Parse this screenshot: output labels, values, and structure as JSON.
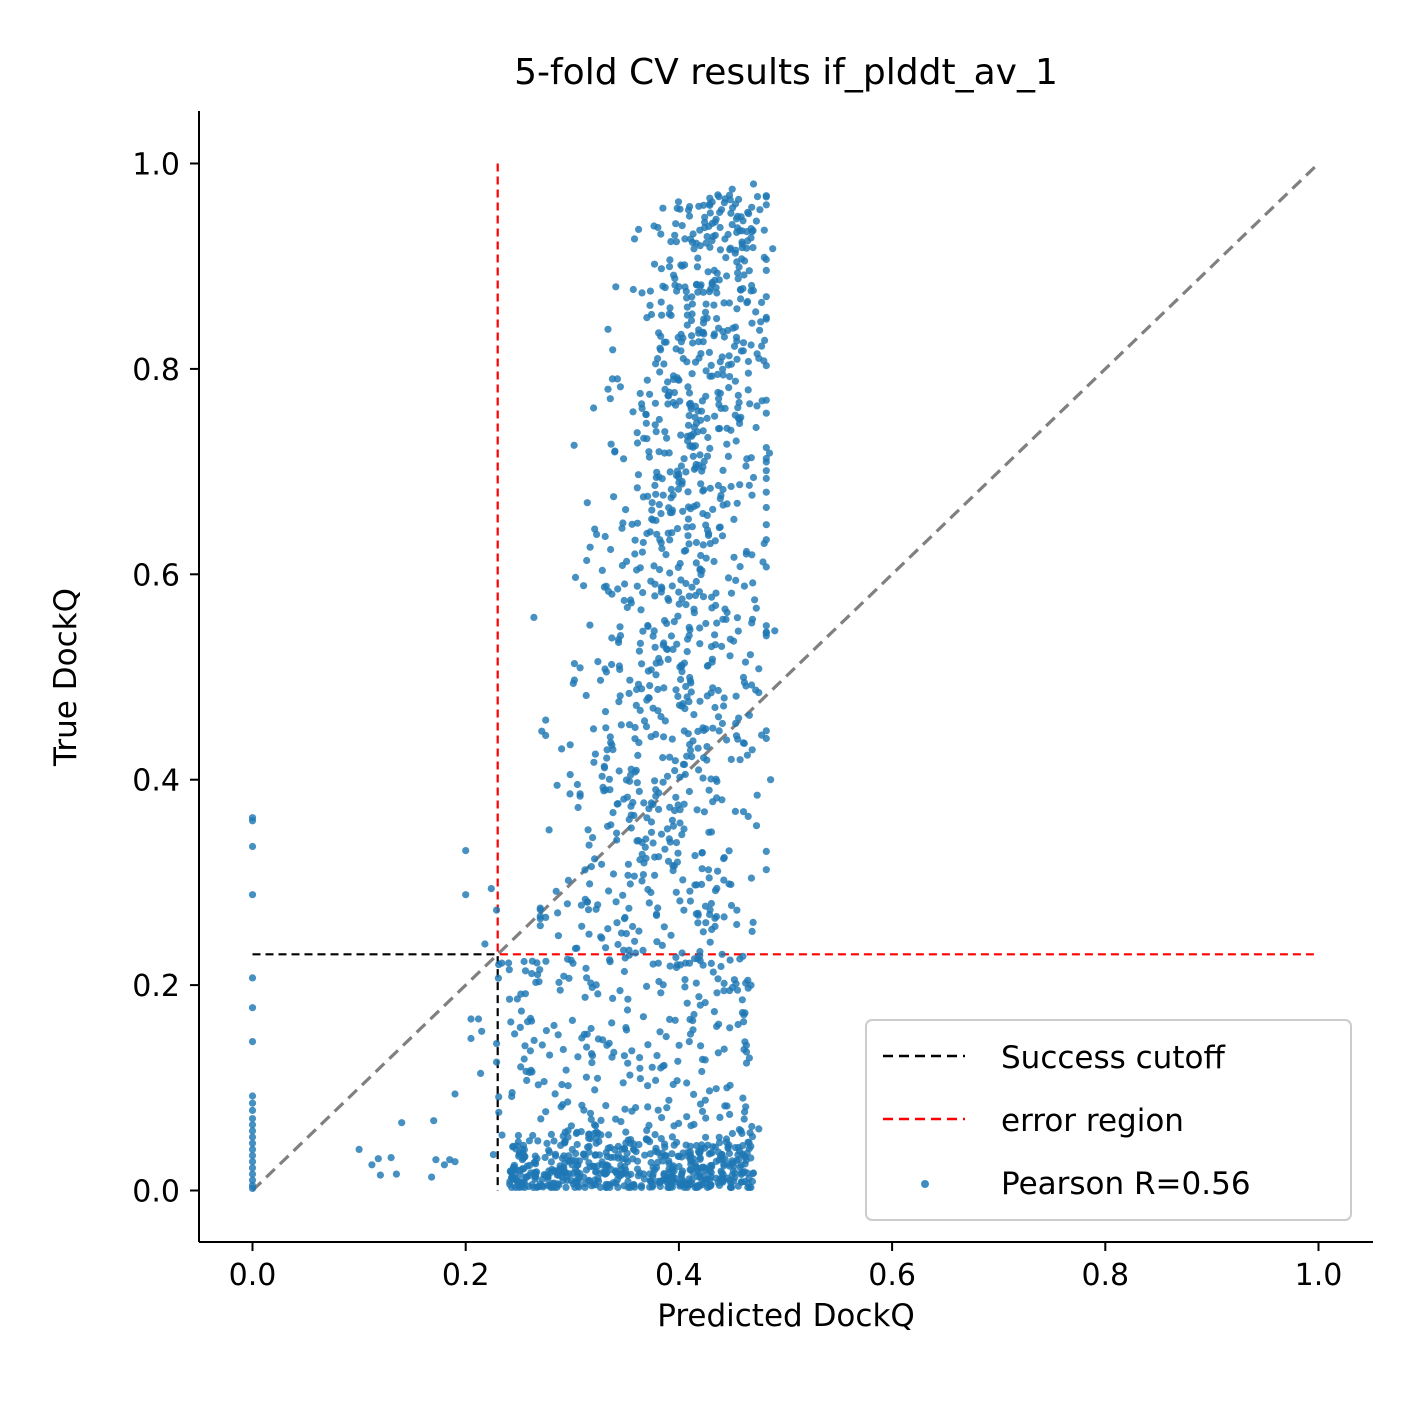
{
  "chart_data": {
    "type": "scatter",
    "title": "5-fold CV results if_plddt_av_1",
    "xlabel": "Predicted DockQ",
    "ylabel": "True DockQ",
    "xlim": [
      -0.05,
      1.05
    ],
    "ylim": [
      -0.05,
      1.05
    ],
    "xticks": [
      0.0,
      0.2,
      0.4,
      0.6,
      0.8,
      1.0
    ],
    "yticks": [
      0.0,
      0.2,
      0.4,
      0.6,
      0.8,
      1.0
    ],
    "xtick_labels": [
      "0.0",
      "0.2",
      "0.4",
      "0.6",
      "0.8",
      "1.0"
    ],
    "ytick_labels": [
      "0.0",
      "0.2",
      "0.4",
      "0.6",
      "0.8",
      "1.0"
    ],
    "grid": false,
    "legend_position": "lower right",
    "lines": [
      {
        "name": "diagonal",
        "x": [
          0.0,
          1.0
        ],
        "y": [
          0.0,
          1.0
        ],
        "color": "#808080",
        "style": "dashed"
      },
      {
        "name": "Success cutoff",
        "x": [
          0.0,
          0.23,
          0.23
        ],
        "y": [
          0.23,
          0.23,
          0.0
        ],
        "color": "#000000",
        "style": "dashed"
      },
      {
        "name": "error region",
        "x": [
          0.23,
          0.23,
          1.0
        ],
        "y": [
          1.0,
          0.23,
          0.23
        ],
        "color": "#ff0000",
        "style": "dashed"
      }
    ],
    "legend": [
      {
        "label": "Success cutoff",
        "kind": "line",
        "color": "#000000"
      },
      {
        "label": "error region",
        "kind": "line",
        "color": "#ff0000"
      },
      {
        "label": "Pearson R=0.56",
        "kind": "point",
        "color": "#1f77b4"
      }
    ],
    "series": [
      {
        "name": "Pearson R=0.56",
        "color": "#1f77b4",
        "points": [
          [
            0.0,
            0.363
          ],
          [
            0.0,
            0.36
          ],
          [
            0.0,
            0.335
          ],
          [
            0.0,
            0.288
          ],
          [
            0.0,
            0.207
          ],
          [
            0.0,
            0.178
          ],
          [
            0.0,
            0.145
          ],
          [
            0.0,
            0.092
          ],
          [
            0.0,
            0.085
          ],
          [
            0.0,
            0.078
          ],
          [
            0.0,
            0.07
          ],
          [
            0.0,
            0.064
          ],
          [
            0.0,
            0.058
          ],
          [
            0.0,
            0.052
          ],
          [
            0.0,
            0.046
          ],
          [
            0.0,
            0.04
          ],
          [
            0.0,
            0.034
          ],
          [
            0.0,
            0.028
          ],
          [
            0.0,
            0.022
          ],
          [
            0.0,
            0.016
          ],
          [
            0.0,
            0.01
          ],
          [
            0.0,
            0.005
          ],
          [
            0.0,
            0.002
          ],
          [
            0.1,
            0.04
          ],
          [
            0.112,
            0.025
          ],
          [
            0.118,
            0.031
          ],
          [
            0.12,
            0.015
          ],
          [
            0.13,
            0.032
          ],
          [
            0.135,
            0.016
          ],
          [
            0.14,
            0.066
          ],
          [
            0.168,
            0.013
          ],
          [
            0.17,
            0.068
          ],
          [
            0.172,
            0.03
          ],
          [
            0.18,
            0.025
          ],
          [
            0.185,
            0.03
          ],
          [
            0.19,
            0.094
          ],
          [
            0.19,
            0.028
          ],
          [
            0.2,
            0.331
          ],
          [
            0.2,
            0.288
          ],
          [
            0.205,
            0.167
          ],
          [
            0.205,
            0.148
          ],
          [
            0.212,
            0.167
          ],
          [
            0.214,
            0.114
          ],
          [
            0.215,
            0.155
          ],
          [
            0.218,
            0.24
          ],
          [
            0.224,
            0.294
          ],
          [
            0.226,
            0.035
          ],
          [
            0.229,
            0.273
          ],
          [
            0.229,
            0.125
          ],
          [
            0.229,
            0.143
          ],
          [
            0.231,
            0.22
          ],
          [
            0.264,
            0.558
          ],
          [
            0.27,
            0.275
          ],
          [
            0.275,
            0.458
          ],
          [
            0.275,
            0.443
          ],
          [
            0.29,
            0.43
          ],
          [
            0.298,
            0.405
          ],
          [
            0.302,
            0.513
          ],
          [
            0.302,
            0.497
          ],
          [
            0.303,
            0.597
          ],
          [
            0.313,
            0.482
          ],
          [
            0.324,
            0.515
          ],
          [
            0.33,
            0.413
          ],
          [
            0.336,
            0.436
          ],
          [
            0.34,
            0.72
          ],
          [
            0.35,
            0.663
          ],
          [
            0.362,
            0.697
          ],
          [
            0.37,
            0.85
          ],
          [
            0.37,
            0.732
          ],
          [
            0.38,
            0.81
          ],
          [
            0.382,
            0.797
          ],
          [
            0.388,
            0.826
          ],
          [
            0.39,
            0.64
          ],
          [
            0.392,
            0.66
          ],
          [
            0.4,
            0.88
          ],
          [
            0.403,
            0.9
          ],
          [
            0.41,
            0.958
          ],
          [
            0.42,
            0.92
          ],
          [
            0.434,
            0.943
          ],
          [
            0.44,
            0.955
          ],
          [
            0.45,
            0.975
          ],
          [
            0.456,
            0.965
          ],
          [
            0.47,
            0.98
          ],
          [
            0.476,
            0.955
          ],
          [
            0.488,
            0.917
          ],
          [
            0.485,
            0.718
          ],
          [
            0.49,
            0.545
          ],
          [
            0.486,
            0.4
          ],
          [
            0.48,
            0.63
          ],
          [
            0.475,
            0.508
          ],
          [
            0.475,
            0.06
          ],
          [
            0.47,
            0.017
          ],
          [
            0.465,
            0.197
          ],
          [
            0.46,
            0.228
          ],
          [
            0.46,
            0.09
          ],
          [
            0.455,
            0.195
          ],
          [
            0.45,
            0.015
          ],
          [
            0.445,
            0.1
          ]
        ]
      }
    ]
  }
}
